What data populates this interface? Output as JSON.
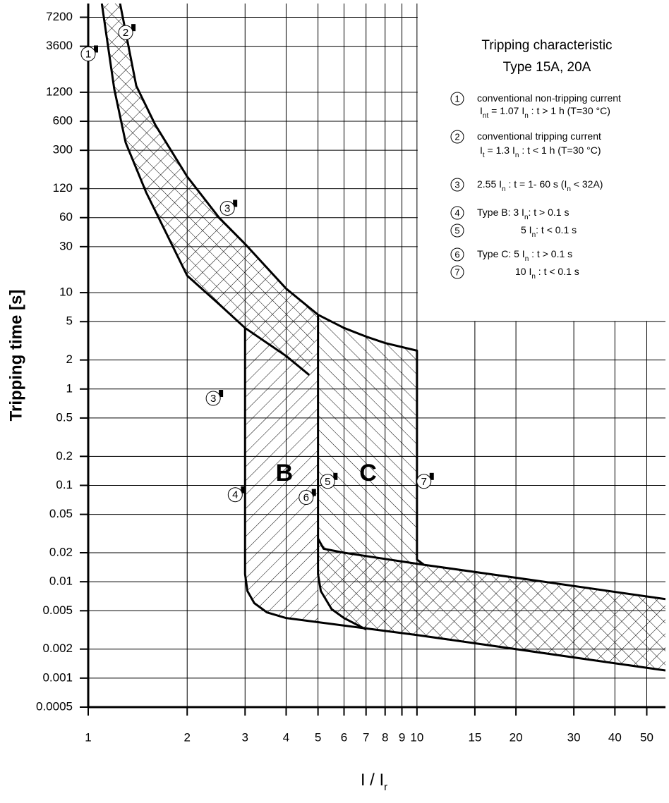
{
  "chart_data": {
    "type": "line",
    "title": [
      "Tripping characteristic",
      "Type 15A, 20A"
    ],
    "x_label": [
      "I / I",
      "r"
    ],
    "y_label": "Tripping time [s]",
    "x_scale": "log",
    "y_scale": "log",
    "grid": true,
    "xlim": [
      1,
      57
    ],
    "ylim": [
      0.0005,
      10000
    ],
    "xticks": [
      1,
      2,
      3,
      4,
      5,
      6,
      7,
      8,
      9,
      10,
      15,
      20,
      30,
      40,
      50
    ],
    "yticks": [
      7200,
      3600,
      1200,
      600,
      300,
      120,
      60,
      30,
      10,
      5,
      2,
      1,
      0.5,
      0.2,
      0.1,
      0.05,
      0.02,
      0.01,
      0.005,
      0.002,
      0.001,
      0.0005
    ],
    "series": [
      {
        "color": "#000000",
        "x": [
          1.25,
          1.4,
          1.6,
          2,
          2.5,
          3,
          4,
          5,
          6,
          7,
          8,
          10,
          10,
          10.5,
          20,
          57
        ],
        "values": [
          10000,
          1400,
          550,
          160,
          60,
          32,
          11,
          5.9,
          4.3,
          3.5,
          3.0,
          2.5,
          0.017,
          0.015,
          0.011,
          0.0066
        ]
      },
      {
        "color": "#000000",
        "x": [
          1.1,
          1.2,
          1.3,
          1.5,
          2,
          2.5,
          3,
          4,
          4.7
        ],
        "values": [
          10000,
          1300,
          360,
          110,
          15,
          7.6,
          4.3,
          2.2,
          1.4
        ]
      },
      {
        "color": "#000000",
        "x": [
          3,
          3,
          3.05,
          3.2,
          3.5,
          4,
          10,
          57
        ],
        "values": [
          4.3,
          0.012,
          0.008,
          0.006,
          0.0048,
          0.0042,
          0.0028,
          0.0012
        ]
      },
      {
        "color": "#000000",
        "x": [
          5,
          5,
          5.1,
          5.5,
          6,
          7
        ],
        "values": [
          5.9,
          0.012,
          0.008,
          0.0052,
          0.0042,
          0.0032
        ]
      },
      {
        "color": "#000000",
        "x": [
          5,
          5.2,
          6,
          10.5
        ],
        "values": [
          0.028,
          0.022,
          0.02,
          0.015
        ]
      }
    ],
    "annotations": [
      {
        "text": "1",
        "x": 1.0,
        "y": 3000
      },
      {
        "text": "2",
        "x": 1.3,
        "y": 5000
      },
      {
        "text": "3",
        "x": 2.65,
        "y": 75
      },
      {
        "text": "3",
        "x": 2.4,
        "y": 0.8
      },
      {
        "text": "4",
        "x": 2.8,
        "y": 0.08
      },
      {
        "text": "5",
        "x": 5.35,
        "y": 0.11
      },
      {
        "text": "6",
        "x": 4.6,
        "y": 0.075
      },
      {
        "text": "7",
        "x": 10.5,
        "y": 0.11
      },
      {
        "text": "B",
        "x": 3.95,
        "y": 0.13
      },
      {
        "text": "C",
        "x": 7.1,
        "y": 0.13
      }
    ],
    "legend_items": [
      {
        "number": "1",
        "lines": [
          [
            "conventional non-tripping current"
          ],
          [
            "I",
            "nt",
            " = 1.07 I",
            "n",
            " :  t > 1 h   (T=30 °C)"
          ]
        ]
      },
      {
        "number": "2",
        "lines": [
          [
            "conventional tripping current"
          ],
          [
            "I",
            "t",
            " = 1.3 I",
            "n",
            " :  t < 1 h   (T=30 °C)"
          ]
        ]
      },
      {
        "number": "3",
        "lines": [
          [
            "2.55 I",
            "n",
            "  : t = 1- 60 s (I",
            "n",
            " < 32A)"
          ]
        ]
      },
      {
        "number": "4",
        "lines": [
          [
            "Type B: 3 I",
            "n",
            ":  t > 0.1 s"
          ]
        ]
      },
      {
        "number": "5",
        "lines": [
          [
            "5 I",
            "n",
            ":  t < 0.1 s"
          ]
        ]
      },
      {
        "number": "6",
        "lines": [
          [
            "Type C: 5 I",
            "n",
            " : t > 0.1 s"
          ]
        ]
      },
      {
        "number": "7",
        "lines": [
          [
            "10 I",
            "n",
            " : t < 0.1 s"
          ]
        ]
      }
    ]
  }
}
